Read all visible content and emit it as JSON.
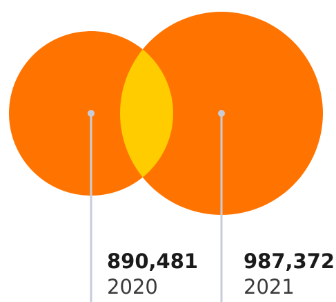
{
  "chart_data": {
    "type": "venn",
    "sets": [
      {
        "label": "2020",
        "value": 890481,
        "value_text": "890,481"
      },
      {
        "label": "2021",
        "value": 987372,
        "value_text": "987,372"
      }
    ],
    "colors": {
      "circle": "#ff7300",
      "overlap": "#ffcc00",
      "leader": "#c8ccd8"
    }
  }
}
